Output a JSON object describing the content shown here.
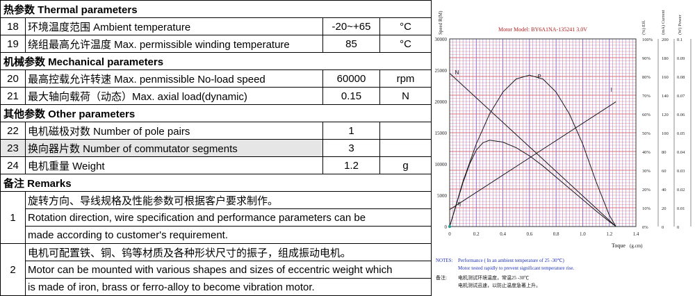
{
  "table": {
    "sections": {
      "thermal": "热参数  Thermal parameters",
      "mechanical": "机械参数 Mechanical parameters",
      "other": "其他参数  Other parameters",
      "remarks": "备注 Remarks"
    },
    "rows": [
      {
        "no": "18",
        "desc": "环境温度范围  Ambient temperature",
        "value": "-20~+65",
        "unit": "°C"
      },
      {
        "no": "19",
        "desc": "绕组最高允许温度  Max. permissible winding temperature",
        "value": "85",
        "unit": "°C"
      },
      {
        "no": "20",
        "desc": "最高控载允许转速 Max. penmissible No-load speed",
        "value": "60000",
        "unit": "rpm"
      },
      {
        "no": "21",
        "desc": "最大轴向载荷（动态）Max. axial load(dynamic)",
        "value": "0.15",
        "unit": "N"
      },
      {
        "no": "22",
        "desc": "电机磁极对数  Number of pole pairs",
        "value": "1",
        "unit": ""
      },
      {
        "no": "23",
        "desc": "换向器片数  Number of commutator segments",
        "value": "3",
        "unit": ""
      },
      {
        "no": "24",
        "desc": "电机重量 Weight",
        "value": "1.2",
        "unit": "g"
      }
    ],
    "remarks": [
      {
        "no": "1",
        "lines": [
          "旋转方向、导线规格及性能参数可根据客户要求制作。",
          "Rotation direction, wire specification and performance parameters can be",
          "made according to customer's requirement."
        ]
      },
      {
        "no": "2",
        "lines": [
          "电机可配置铁、铜、钨等材质及各种形状尺寸的振子，组成振动电机。",
          "Motor can be mounted with various shapes and sizes of eccentric weight which",
          "is made of iron, brass or ferro-alloy to become vibration motor."
        ]
      }
    ]
  },
  "chart_data": {
    "type": "line",
    "title": "Motor Model: BY6A1NA-135241   3.0V",
    "xlabel": "Toque",
    "xunit": "(g.cm)",
    "xlim": [
      0,
      1.4
    ],
    "x_ticks": [
      "0",
      "0.2",
      "0.4",
      "0.6",
      "0.8",
      "1.0",
      "1.2",
      "1.4"
    ],
    "axes": {
      "speed": {
        "label": "Speed R(M)",
        "ticks": [
          "0",
          "5000",
          "10000",
          "15000",
          "20000",
          "25000",
          "30000"
        ],
        "ylim": [
          0,
          30000
        ]
      },
      "eff": {
        "label": "(%) Eff.",
        "ticks": [
          "0%",
          "10%",
          "20%",
          "30%",
          "40%",
          "50%",
          "60%",
          "70%",
          "80%",
          "90%",
          "100%"
        ],
        "ylim": [
          0,
          100
        ]
      },
      "current": {
        "label": "(mA) Current",
        "ticks": [
          "0",
          "20",
          "40",
          "60",
          "80",
          "100",
          "120",
          "140",
          "160",
          "180",
          "200"
        ],
        "ylim": [
          0,
          200
        ]
      },
      "power": {
        "label": "(W) Power",
        "ticks": [
          "0",
          "0.01",
          "0.02",
          "0.03",
          "0.04",
          "0.05",
          "0.06",
          "0.07",
          "0.08",
          "0.09",
          "0.1"
        ],
        "ylim": [
          0,
          0.1
        ]
      }
    },
    "series": [
      {
        "name": "N",
        "axis": "speed",
        "x": [
          0,
          1.25
        ],
        "y": [
          24500,
          0
        ]
      },
      {
        "name": "I",
        "axis": "current",
        "x": [
          0,
          1.25
        ],
        "y": [
          18,
          133
        ]
      },
      {
        "name": "P",
        "axis": "speed",
        "x": [
          0,
          0.1,
          0.2,
          0.3,
          0.4,
          0.5,
          0.6,
          0.7,
          0.8,
          0.9,
          1.0,
          1.1,
          1.2,
          1.25
        ],
        "y": [
          0,
          7200,
          13200,
          18000,
          21500,
          23600,
          24200,
          23600,
          21500,
          18000,
          13200,
          7200,
          1800,
          0
        ]
      },
      {
        "name": "η",
        "axis": "speed",
        "x": [
          0,
          0.05,
          0.1,
          0.15,
          0.2,
          0.25,
          0.3,
          0.4,
          0.5,
          0.6,
          0.7,
          0.8,
          0.9,
          1.0,
          1.1,
          1.2,
          1.25
        ],
        "y": [
          0,
          3500,
          7000,
          10000,
          12200,
          13400,
          13800,
          13500,
          12600,
          11300,
          9700,
          7900,
          6100,
          4300,
          2500,
          800,
          0
        ]
      }
    ],
    "notes": {
      "label": "NOTES:",
      "line1": "Performance ( In an ambient temperature of 25 -30℃)",
      "line2": "Motor tested rapidly to prevent significant temperature rise.",
      "cn_label": "备注:",
      "cn1": "电机测试环境温度，常温25 -30℃",
      "cn2": "电机测试迅速，以防止温度急著上升。"
    },
    "colors": {
      "grid_v": "#7b5ce8",
      "grid_h": "#e07070",
      "curve": "#1a1a1a",
      "title": "#b02020",
      "notes": "#1c2fb8"
    }
  }
}
